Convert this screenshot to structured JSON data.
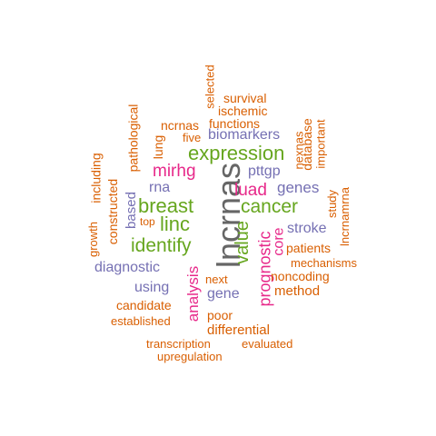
{
  "words": [
    {
      "text": "lncrnas",
      "color": "#666666"
    },
    {
      "text": "breast",
      "color": "#66a61e"
    },
    {
      "text": "expression",
      "color": "#66a61e"
    },
    {
      "text": "linc",
      "color": "#66a61e"
    },
    {
      "text": "identify",
      "color": "#66a61e"
    },
    {
      "text": "cancer",
      "color": "#66a61e"
    },
    {
      "text": "value",
      "color": "#66a61e"
    },
    {
      "text": "mirhg",
      "color": "#e7298a"
    },
    {
      "text": "luad",
      "color": "#e7298a"
    },
    {
      "text": "prognostic",
      "color": "#e7298a"
    },
    {
      "text": "analysis",
      "color": "#e7298a"
    },
    {
      "text": "core",
      "color": "#e7298a"
    },
    {
      "text": "biomarkers",
      "color": "#7570b3"
    },
    {
      "text": "pttgp",
      "color": "#7570b3"
    },
    {
      "text": "genes",
      "color": "#7570b3"
    },
    {
      "text": "rna",
      "color": "#7570b3"
    },
    {
      "text": "based",
      "color": "#7570b3"
    },
    {
      "text": "diagnostic",
      "color": "#7570b3"
    },
    {
      "text": "using",
      "color": "#7570b3"
    },
    {
      "text": "gene",
      "color": "#7570b3"
    },
    {
      "text": "stroke",
      "color": "#7570b3"
    },
    {
      "text": "selected",
      "color": "#d95f02"
    },
    {
      "text": "survival",
      "color": "#d95f02"
    },
    {
      "text": "ischemic",
      "color": "#d95f02"
    },
    {
      "text": "functions",
      "color": "#d95f02"
    },
    {
      "text": "ncrnas",
      "color": "#d95f02"
    },
    {
      "text": "five",
      "color": "#d95f02"
    },
    {
      "text": "pathological",
      "color": "#d95f02"
    },
    {
      "text": "lung",
      "color": "#d95f02"
    },
    {
      "text": "including",
      "color": "#d95f02"
    },
    {
      "text": "constructed",
      "color": "#d95f02"
    },
    {
      "text": "top",
      "color": "#d95f02"
    },
    {
      "text": "growth",
      "color": "#d95f02"
    },
    {
      "text": "nexnas",
      "color": "#d95f02"
    },
    {
      "text": "database",
      "color": "#d95f02"
    },
    {
      "text": "important",
      "color": "#d95f02"
    },
    {
      "text": "study",
      "color": "#d95f02"
    },
    {
      "text": "lncrnamrna",
      "color": "#d95f02"
    },
    {
      "text": "patients",
      "color": "#d95f02"
    },
    {
      "text": "mechanisms",
      "color": "#d95f02"
    },
    {
      "text": "noncoding",
      "color": "#d95f02"
    },
    {
      "text": "method",
      "color": "#d95f02"
    },
    {
      "text": "next",
      "color": "#d95f02"
    },
    {
      "text": "candidate",
      "color": "#d95f02"
    },
    {
      "text": "poor",
      "color": "#d95f02"
    },
    {
      "text": "established",
      "color": "#d95f02"
    },
    {
      "text": "differential",
      "color": "#d95f02"
    },
    {
      "text": "transcription",
      "color": "#d95f02"
    },
    {
      "text": "evaluated",
      "color": "#d95f02"
    },
    {
      "text": "upregulation",
      "color": "#d95f02"
    }
  ]
}
